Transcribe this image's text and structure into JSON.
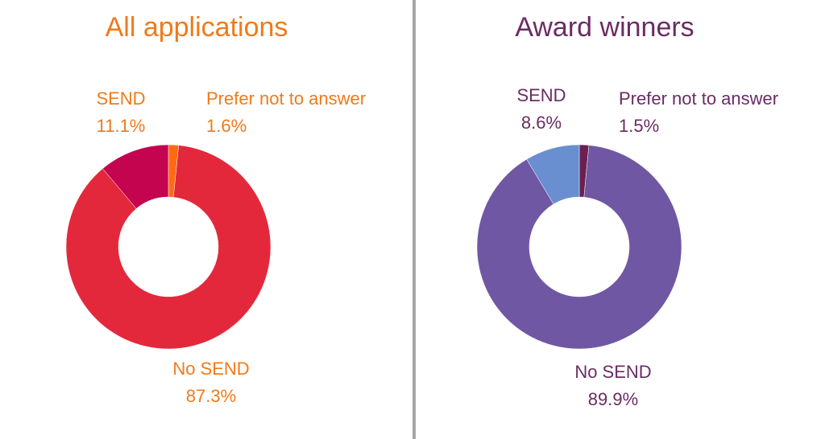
{
  "chart_data": [
    {
      "type": "pie",
      "title": "All applications",
      "title_color": "#f07a1a",
      "label_color": "#f07a1a",
      "slices": [
        {
          "label": "Prefer not to answer",
          "value": 1.6,
          "display": "1.6%",
          "color": "#ff6a13"
        },
        {
          "label": "No SEND",
          "value": 87.3,
          "display": "87.3%",
          "color": "#e4283c"
        },
        {
          "label": "SEND",
          "value": 11.1,
          "display": "11.1%",
          "color": "#c4044f"
        }
      ],
      "donut": true,
      "legend": "none"
    },
    {
      "type": "pie",
      "title": "Award winners",
      "title_color": "#6a2c63",
      "label_color": "#6a2c63",
      "slices": [
        {
          "label": "Prefer not to answer",
          "value": 1.5,
          "display": "1.5%",
          "color": "#6a2050"
        },
        {
          "label": "No SEND",
          "value": 89.9,
          "display": "89.9%",
          "color": "#7057a3"
        },
        {
          "label": "SEND",
          "value": 8.6,
          "display": "8.6%",
          "color": "#6a8fd0"
        }
      ],
      "donut": true,
      "legend": "none"
    }
  ]
}
